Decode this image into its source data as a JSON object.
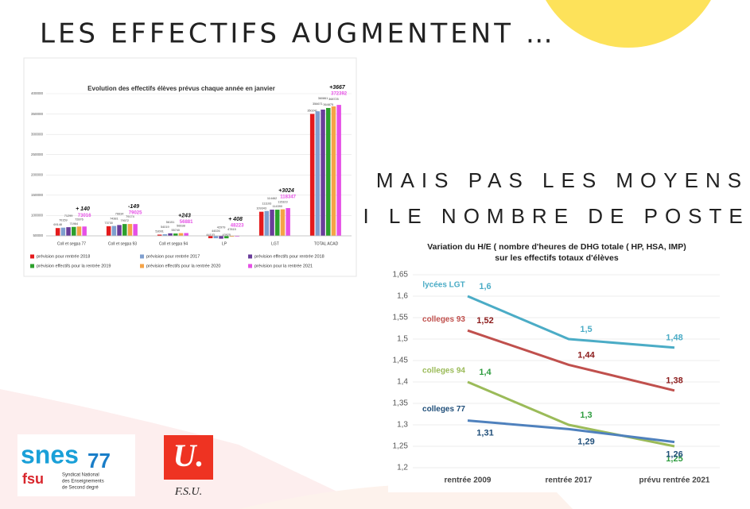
{
  "slide": {
    "title": "LES EFFECTIFS AUGMENTENT …",
    "subtitle_line1": "MAIS PAS LES MOYENS",
    "subtitle_line2": "NI LE NOMBRE DE POSTES!"
  },
  "logos": {
    "snes": "snes",
    "number": "77",
    "fsu": "fsu",
    "snes_caption": [
      "Syndicat National",
      "des Enseignements",
      "de Second degré"
    ],
    "u": "U.",
    "fsu_caption": "F.S.U."
  },
  "chart_data": [
    {
      "type": "bar",
      "title": "Evolution des effectifs élèves prévus chaque année en janvier",
      "categories": [
        "Coll et segpa 77",
        "Coll et segpa 93",
        "Coll et segpa 94",
        "LP",
        "LGT",
        "TOTAL ACAD"
      ],
      "series": [
        {
          "name": "prévision pour rentrée 2018",
          "color": "#e41a1c",
          "values": [
            69148,
            73730,
            53001,
            44103,
            109343,
            350241
          ]
        },
        {
          "name": "prévision pour rentrée 2017",
          "color": "#7f9fcf",
          "values": [
            70159,
            74381,
            54019,
            44026,
            111193,
            356671
          ]
        },
        {
          "name": "prévision effectifs  pour rentrée 2018",
          "color": "#6a3d9a",
          "values": [
            71299,
            76634,
            56151,
            42979,
            114462,
            360861
          ]
        },
        {
          "name": "prévision effectifs pour la rentrée 2019",
          "color": "#2ca02c",
          "values": [
            71964,
            79072,
            55740,
            43925,
            114390,
            364875
          ]
        },
        {
          "name": "prévision effectifs pour la rentrée 2020",
          "color": "#f5a347",
          "values": [
            72876,
            79174,
            56638,
            47815,
            115323,
            368725
          ]
        },
        {
          "name": "prévision pour la rentrée 2021",
          "color": "#e64fe6",
          "values": [
            73016,
            79025,
            56881,
            48223,
            118347,
            372392
          ]
        }
      ],
      "annotations": [
        "+ 140",
        "-149",
        "+243",
        "+ 408",
        "+3024",
        "+3667"
      ],
      "ylim": [
        50000,
        400000
      ],
      "yticks": [
        50000,
        100000,
        150000,
        200000,
        250000,
        300000,
        350000,
        400000
      ],
      "grid": true
    },
    {
      "type": "line",
      "title": [
        "Variation du H/E ( nombre d'heures de DHG totale ( HP, HSA, IMP)",
        "sur les effectifs totaux d'élèves"
      ],
      "categories": [
        "rentrée 2009",
        "rentrée 2017",
        "prévu rentrée 2021"
      ],
      "series": [
        {
          "name": "lycées LGT",
          "color": "#4bacc6",
          "values": [
            1.6,
            1.5,
            1.48
          ],
          "value_labels": [
            "1,6",
            "1,5",
            "1,48"
          ]
        },
        {
          "name": "colleges 93",
          "color": "#c0504d",
          "values": [
            1.52,
            1.44,
            1.38
          ],
          "value_labels": [
            "1,52",
            "1,44",
            "1,38"
          ]
        },
        {
          "name": "colleges 94",
          "color": "#9bbb59",
          "values": [
            1.4,
            1.3,
            1.25
          ],
          "value_labels": [
            "1,4",
            "1,3",
            "1,25"
          ]
        },
        {
          "name": "colleges 77",
          "color": "#4f81bd",
          "values": [
            1.31,
            1.29,
            1.26
          ],
          "value_labels": [
            "1,31",
            "1,29",
            "1,26"
          ]
        }
      ],
      "ylim": [
        1.2,
        1.65
      ],
      "yticks": [
        {
          "value": 1.2,
          "label": "1,2"
        },
        {
          "value": 1.25,
          "label": "1,25"
        },
        {
          "value": 1.3,
          "label": "1,3"
        },
        {
          "value": 1.35,
          "label": "1,35"
        },
        {
          "value": 1.4,
          "label": "1,4"
        },
        {
          "value": 1.45,
          "label": "1,45"
        },
        {
          "value": 1.5,
          "label": "1,5"
        },
        {
          "value": 1.55,
          "label": "1,55"
        },
        {
          "value": 1.6,
          "label": "1,6"
        },
        {
          "value": 1.65,
          "label": "1,65"
        }
      ],
      "grid": true
    }
  ]
}
